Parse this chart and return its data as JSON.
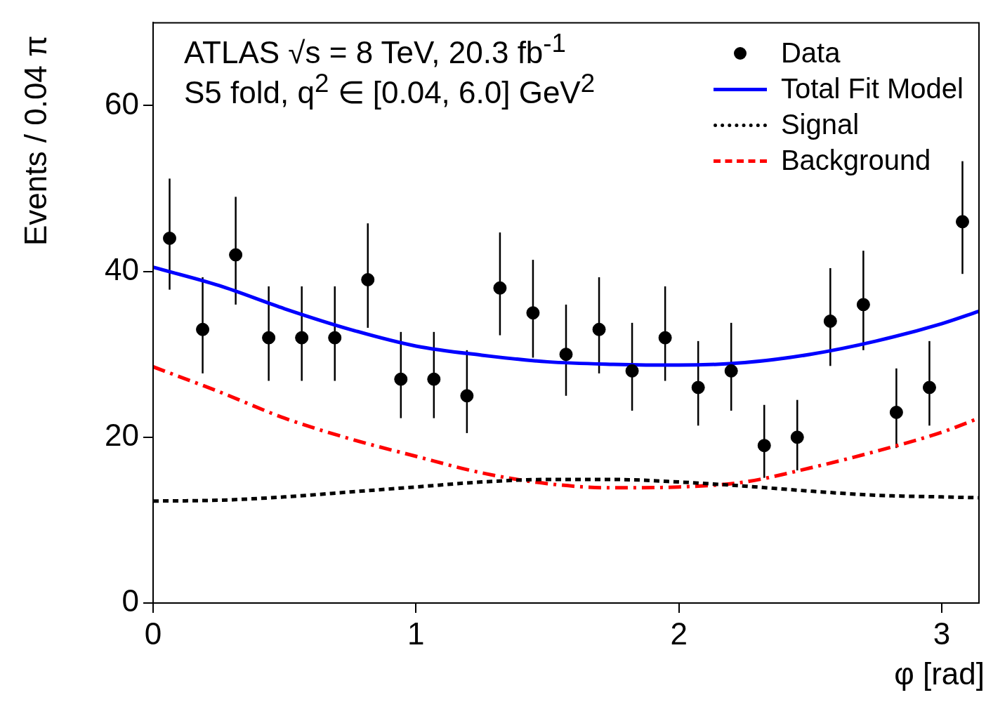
{
  "chart_data": {
    "type": "scatter",
    "xlabel": "φ [rad]",
    "ylabel": "Events / 0.04 π",
    "annotations": [
      "ATLAS  √s = 8 TeV, 20.3 fb$^{-1}$",
      "S5 fold, q$^{2}$ ∈ [0.04, 6.0] GeV$^{2}$"
    ],
    "xlim": [
      0,
      3.1416
    ],
    "xticks": [
      0,
      1,
      2,
      3
    ],
    "ylim": [
      0,
      70
    ],
    "yticks": [
      0,
      20,
      40,
      60
    ],
    "grid": false,
    "legend": "top right",
    "series": [
      {
        "name": "Data",
        "marker": "circle",
        "color": "#000000",
        "x": [
          0.0628,
          0.1885,
          0.3142,
          0.4398,
          0.5655,
          0.6912,
          0.8168,
          0.9425,
          1.0681,
          1.1938,
          1.3195,
          1.4451,
          1.5708,
          1.6965,
          1.8221,
          1.9478,
          2.0735,
          2.1991,
          2.3248,
          2.4504,
          2.5761,
          2.7018,
          2.8274,
          2.9531,
          3.0788
        ],
        "values": [
          44,
          33,
          42,
          32,
          32,
          32,
          39,
          27,
          27,
          25,
          38,
          35,
          30,
          33,
          28,
          32,
          26,
          28,
          19,
          20,
          34,
          36,
          23,
          26,
          46
        ],
        "errors": [
          [
            37.8,
            51.2
          ],
          [
            27.7,
            39.3
          ],
          [
            36.0,
            49.0
          ],
          [
            26.8,
            38.2
          ],
          [
            26.8,
            38.2
          ],
          [
            26.8,
            38.2
          ],
          [
            33.2,
            45.8
          ],
          [
            22.3,
            32.7
          ],
          [
            22.3,
            32.7
          ],
          [
            20.5,
            30.5
          ],
          [
            32.3,
            44.7
          ],
          [
            29.6,
            41.4
          ],
          [
            25.0,
            36.0
          ],
          [
            27.7,
            39.3
          ],
          [
            23.2,
            33.8
          ],
          [
            26.8,
            38.2
          ],
          [
            21.4,
            31.6
          ],
          [
            23.2,
            33.8
          ],
          [
            15.1,
            23.9
          ],
          [
            16.0,
            24.5
          ],
          [
            28.6,
            40.4
          ],
          [
            30.5,
            42.5
          ],
          [
            18.7,
            28.3
          ],
          [
            21.4,
            31.6
          ],
          [
            39.7,
            53.3
          ]
        ]
      },
      {
        "name": "Total Fit Model",
        "type": "line",
        "marker": "none",
        "line_style": "solid",
        "color": "#0000ff",
        "x": [
          0,
          0.25,
          0.5,
          0.75,
          1,
          1.25,
          1.5,
          1.75,
          2,
          2.25,
          2.5,
          2.75,
          3,
          3.1416
        ],
        "values": [
          40.5,
          38.3,
          35.5,
          33.0,
          31.0,
          29.9,
          29.1,
          28.8,
          28.7,
          29.0,
          30.0,
          31.6,
          33.7,
          35.2
        ]
      },
      {
        "name": "Signal",
        "type": "line",
        "marker": "none",
        "line_style": "dotted",
        "color": "#000000",
        "x": [
          0,
          0.25,
          0.5,
          0.75,
          1,
          1.25,
          1.5,
          1.75,
          2,
          2.25,
          2.5,
          2.75,
          3,
          3.1416
        ],
        "values": [
          12.3,
          12.4,
          12.8,
          13.4,
          14.0,
          14.6,
          14.9,
          14.9,
          14.6,
          14.1,
          13.5,
          13.0,
          12.8,
          12.7
        ]
      },
      {
        "name": "Background",
        "type": "line",
        "marker": "none",
        "line_style": "dashed",
        "color": "#ff0000",
        "x": [
          0,
          0.25,
          0.5,
          0.75,
          1,
          1.25,
          1.5,
          1.75,
          2,
          2.25,
          2.5,
          2.75,
          3,
          3.1416
        ],
        "values": [
          28.5,
          25.5,
          22.3,
          19.8,
          17.7,
          15.7,
          14.4,
          13.9,
          14.0,
          14.6,
          16.3,
          18.3,
          20.6,
          22.3
        ]
      }
    ]
  }
}
